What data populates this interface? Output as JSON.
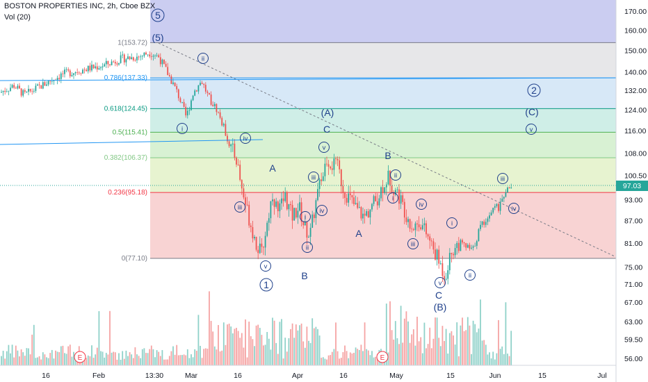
{
  "header": {
    "title": "BOSTON PROPERTIES INC, 2h, Cboe BZX",
    "volume_label": "Vol (20)"
  },
  "chart_data": {
    "type": "candlestick",
    "y_axis": {
      "ticks": [
        170,
        160,
        150,
        140,
        132,
        124,
        116,
        108,
        100.5,
        93,
        87,
        81,
        75,
        71,
        67,
        63,
        59.5,
        56
      ],
      "tick_labels": [
        "170.00",
        "160.00",
        "150.00",
        "140.00",
        "132.00",
        "124.00",
        "116.00",
        "108.00",
        "100.50",
        "93.00",
        "87.00",
        "81.00",
        "75.00",
        "71.00",
        "67.00",
        "63.00",
        "59.50",
        "56.00"
      ],
      "scale": "log"
    },
    "x_axis": {
      "ticks": [
        "16",
        "Feb",
        "13:30",
        "Mar",
        "16",
        "Apr",
        "16",
        "May",
        "15",
        "Jun",
        "15",
        "Jul"
      ]
    },
    "last_price": 97.03,
    "last_price_label": "97.03",
    "fibonacci": [
      {
        "level": 1,
        "price": 153.72,
        "label": "1(153.72)",
        "color": "#787b86"
      },
      {
        "level": 0.786,
        "price": 137.33,
        "label": "0.786(137.33)",
        "color": "#2196f3"
      },
      {
        "level": 0.618,
        "price": 124.45,
        "label": "0.618(124.45)",
        "color": "#089981"
      },
      {
        "level": 0.5,
        "price": 115.41,
        "label": "0.5(115.41)",
        "color": "#4caf50"
      },
      {
        "level": 0.382,
        "price": 106.37,
        "label": "0.382(106.37)",
        "color": "#81c784"
      },
      {
        "level": 0.236,
        "price": 95.18,
        "label": "0.236(95.18)",
        "color": "#f23645"
      },
      {
        "level": 0,
        "price": 77.1,
        "label": "0(77.10)",
        "color": "#787b86"
      }
    ],
    "wave_labels": [
      "5",
      "(5)",
      "ii",
      "i",
      "iv",
      "iii",
      "v",
      "1",
      "A",
      "B",
      "i",
      "ii",
      "iii",
      "iv",
      "v",
      "(A)",
      "C",
      "A",
      "B",
      "ii",
      "i",
      "iv",
      "iii",
      "v",
      "C",
      "(B)",
      "i",
      "ii",
      "iii",
      "iv",
      "2",
      "(C)",
      "v"
    ],
    "event_markers": [
      "E",
      "E"
    ],
    "colors": {
      "up": "#26a69a",
      "down": "#ef5350",
      "vol_up": "#8fd1c9",
      "vol_down": "#f5a3a3",
      "wave": "#1e3f8a"
    }
  }
}
